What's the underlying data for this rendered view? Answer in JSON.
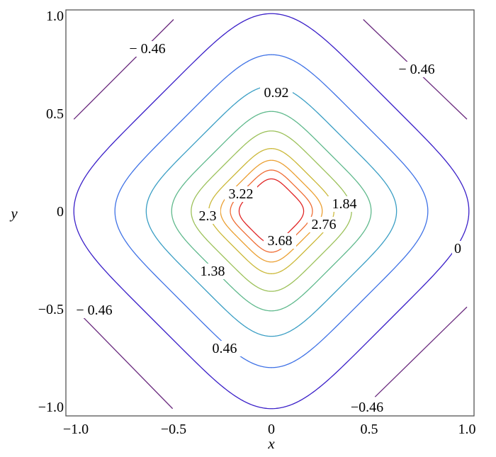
{
  "chart_data": {
    "type": "contour",
    "title": "",
    "xlabel": "x",
    "ylabel": "y",
    "xlim": [
      -1.05,
      1.04
    ],
    "ylim": [
      -1.05,
      1.03
    ],
    "grid": false,
    "x_ticks": [
      "−1.0",
      "−0.5",
      "0",
      "0.5",
      "1.0"
    ],
    "x_tick_values": [
      -1.0,
      -0.5,
      0,
      0.5,
      1.0
    ],
    "y_ticks": [
      "−1.0",
      "−0.5",
      "0",
      "0.5",
      "1.0"
    ],
    "y_tick_values": [
      -1.0,
      -0.5,
      0,
      0.5,
      1.0
    ],
    "contours": [
      {
        "level": 0,
        "color": "#3a1fc8",
        "axis_intercept": 1.01
      },
      {
        "level": 0.46,
        "color": "#3f72e6",
        "axis_intercept": 0.8
      },
      {
        "level": 0.92,
        "color": "#3a9ec4",
        "axis_intercept": 0.64
      },
      {
        "level": 1.38,
        "color": "#5fb98c",
        "axis_intercept": 0.51
      },
      {
        "level": 1.84,
        "color": "#9cc15a",
        "axis_intercept": 0.41
      },
      {
        "level": 2.3,
        "color": "#cbb93a",
        "axis_intercept": 0.32
      },
      {
        "level": 2.76,
        "color": "#eba033",
        "axis_intercept": 0.26
      },
      {
        "level": 3.22,
        "color": "#ef6c33",
        "axis_intercept": 0.21
      },
      {
        "level": 3.68,
        "color": "#e02424",
        "axis_intercept": 0.165
      }
    ],
    "corner_contours": {
      "level": -0.46,
      "color": "#6a2a7e",
      "segments": [
        [
          [
            -1.01,
            0.47
          ],
          [
            -0.5,
            0.98
          ]
        ],
        [
          [
            0.47,
            0.98
          ],
          [
            1.0,
            0.47
          ]
        ],
        [
          [
            -0.96,
            -0.545
          ],
          [
            -0.505,
            -1.01
          ]
        ],
        [
          [
            0.53,
            -0.95
          ],
          [
            1.0,
            -0.49
          ]
        ]
      ]
    },
    "contour_labels": [
      "− 0.46",
      "− 0.46",
      "− 0.46",
      "−0.46",
      "0.92",
      "1.84",
      "3.22",
      "2.3",
      "2.76",
      "3.68",
      "1.38",
      "0.46",
      "0"
    ]
  }
}
